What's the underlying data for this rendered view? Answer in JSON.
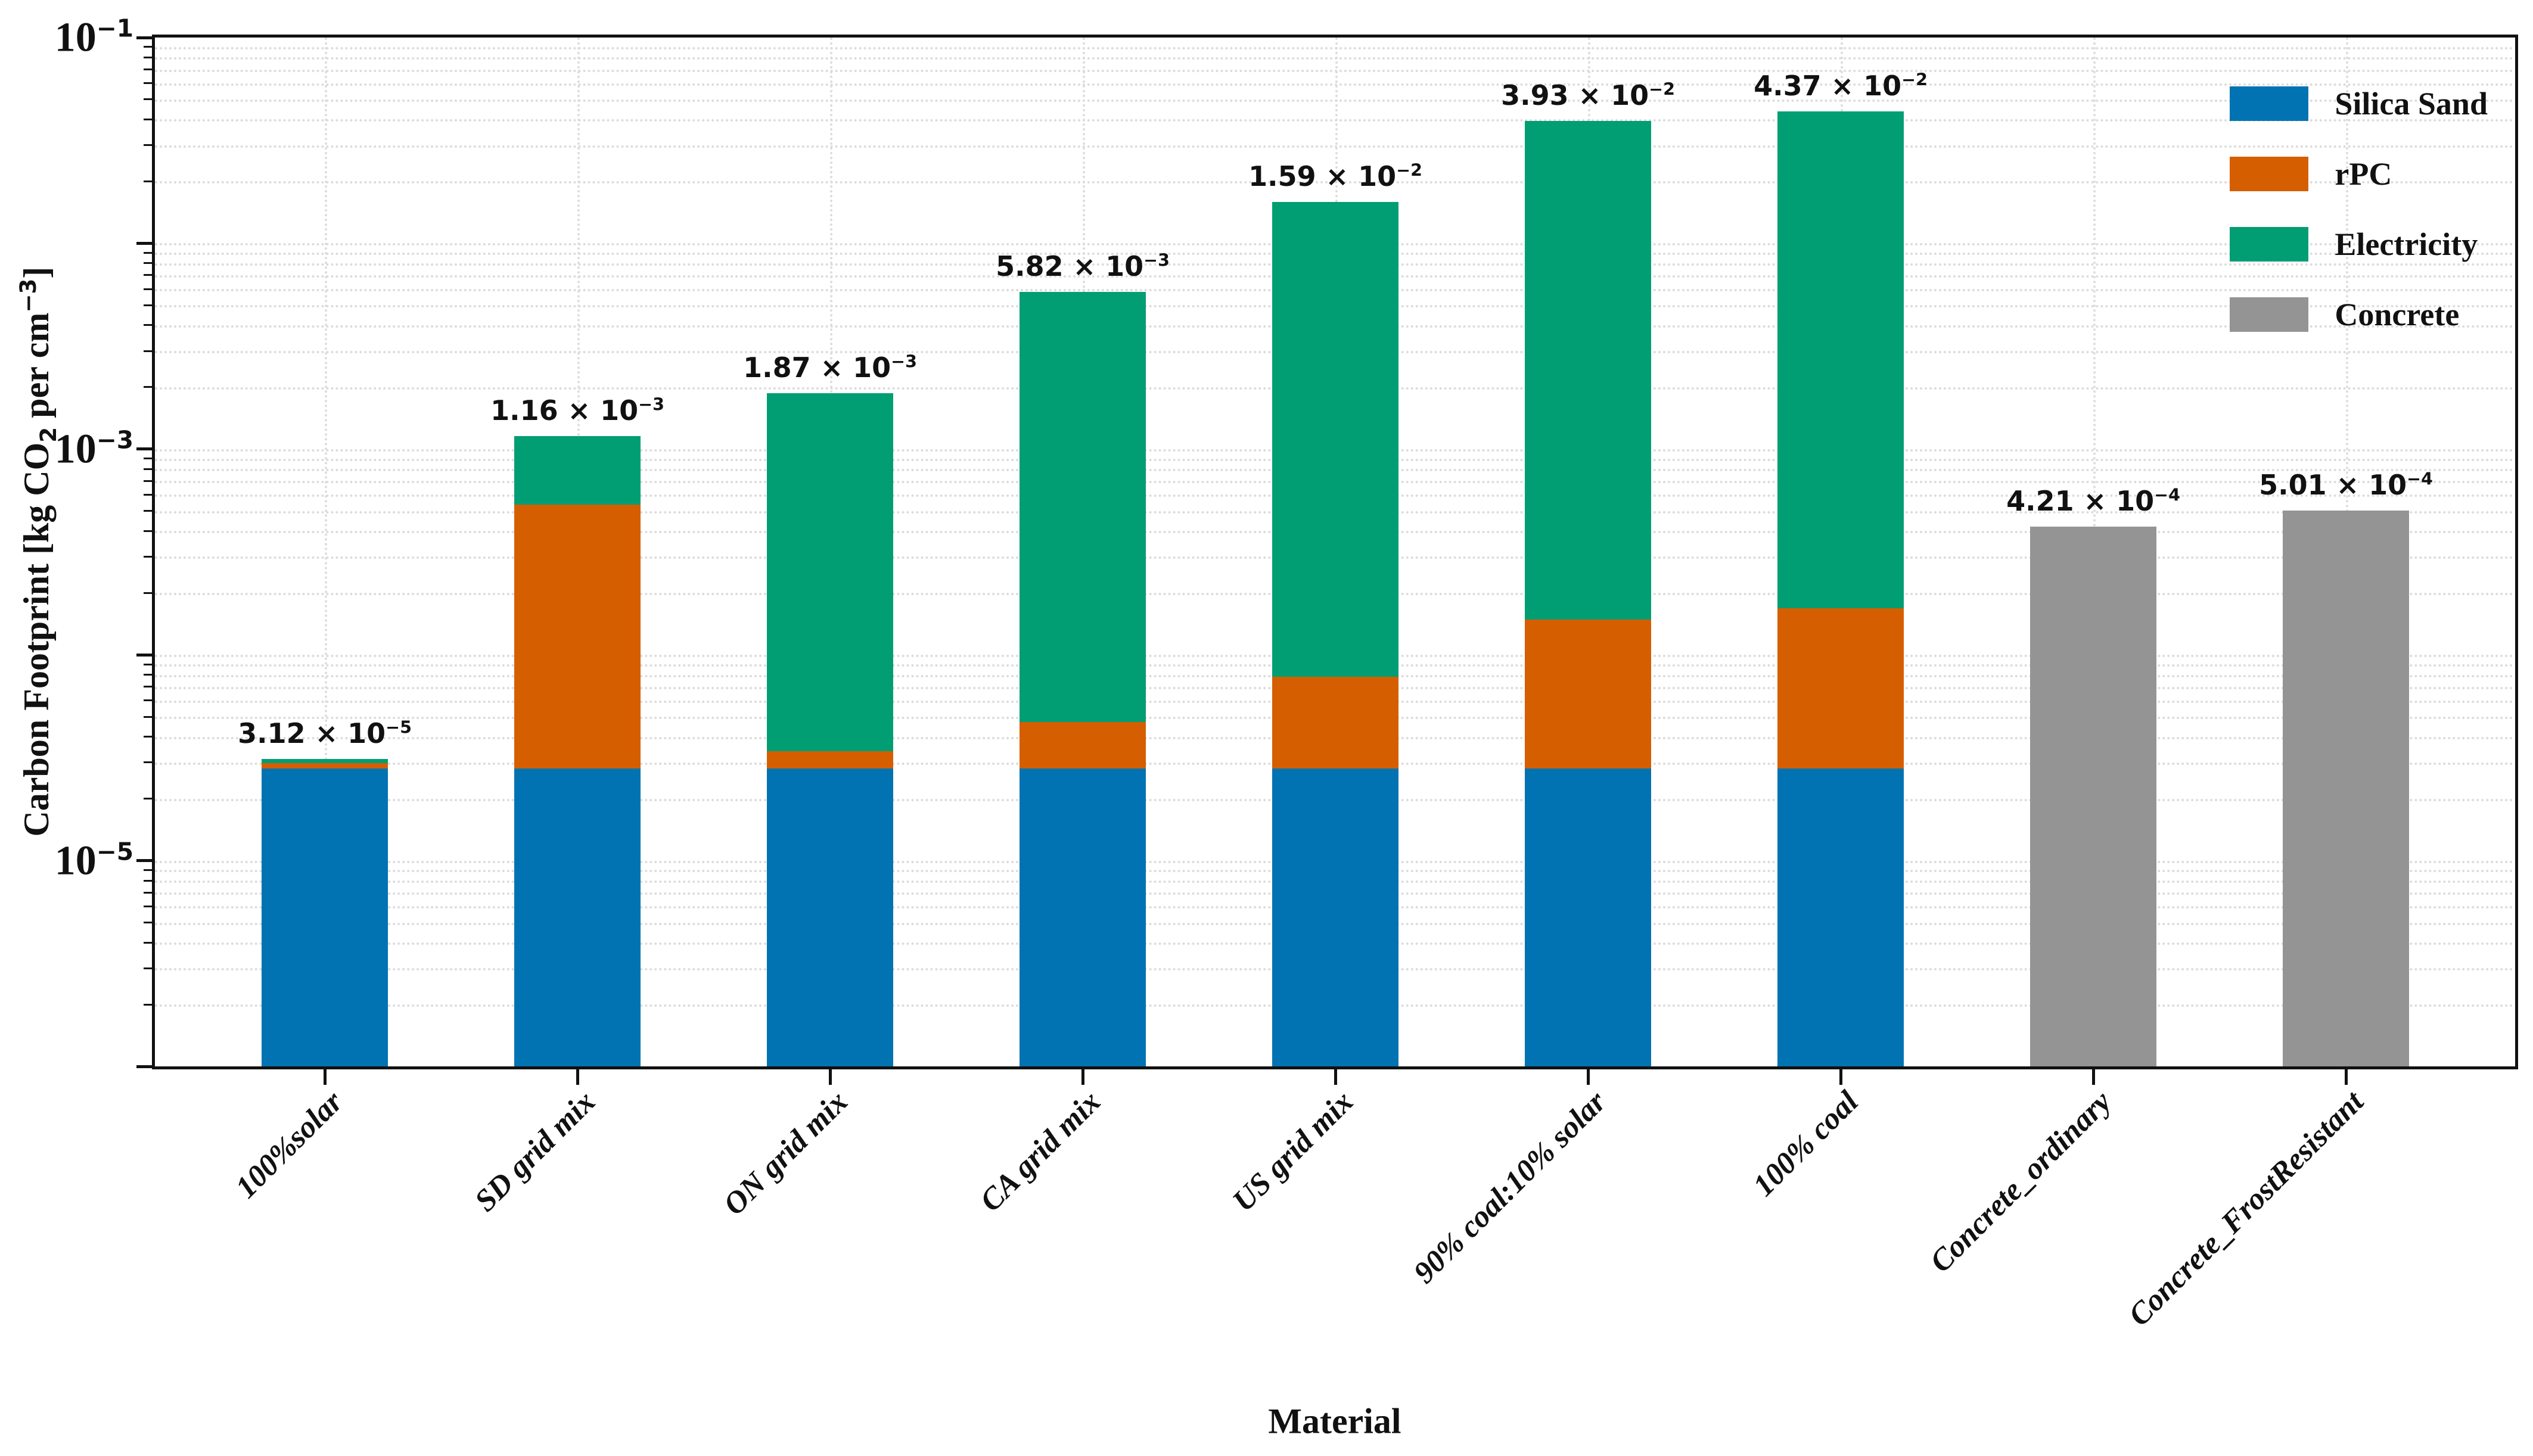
{
  "figure": {
    "x_axis_title": "Material",
    "y_axis_title_plain": "Carbon Footprint [kg CO2 per cm-3]",
    "y_axis_title_segments": [
      {
        "text": "Carbon Footprint [kg CO"
      },
      {
        "text": "2",
        "script": "sub"
      },
      {
        "text": " per cm"
      },
      {
        "text": "−3",
        "script": "sup"
      },
      {
        "text": "]"
      }
    ]
  },
  "legend": {
    "position": "upper right",
    "entries": [
      {
        "label": "Silica Sand",
        "color": "#0173b2"
      },
      {
        "label": "rPC",
        "color": "#d55e00"
      },
      {
        "label": "Electricity",
        "color": "#029e73"
      },
      {
        "label": "Concrete",
        "color": "#949494"
      }
    ]
  },
  "chart_data": {
    "type": "bar",
    "stacked": true,
    "log_y": true,
    "xlabel": "Material",
    "ylabel": "Carbon Footprint [kg CO2 per cm-3]",
    "ylim": [
      1e-06,
      0.1
    ],
    "y_tick_labels": [
      {
        "base": "10",
        "exp": "−1",
        "value": 0.1
      },
      {
        "base": "10",
        "exp": "−3",
        "value": 0.001
      },
      {
        "base": "10",
        "exp": "−5",
        "value": 1e-05
      }
    ],
    "grid": "dotted minor+major log gridlines horizontal, dotted vertical at category centers",
    "legend_position": "upper right",
    "categories": [
      "100%solar",
      "SD grid mix",
      "ON grid mix",
      "CA grid mix",
      "US grid mix",
      "90% coal:10% solar",
      "100% coal",
      "Concrete_ordinary",
      "Concrete_FrostResistant"
    ],
    "series": [
      {
        "name": "Silica Sand",
        "color": "#0173b2",
        "values": [
          2.8e-05,
          2.8e-05,
          2.8e-05,
          2.8e-05,
          2.8e-05,
          2.8e-05,
          2.8e-05,
          0,
          0
        ]
      },
      {
        "name": "rPC",
        "color": "#d55e00",
        "values": [
          1.8e-06,
          0.00051,
          6e-06,
          1.9e-05,
          5e-05,
          0.00012,
          0.00014,
          0,
          0
        ]
      },
      {
        "name": "Electricity",
        "color": "#029e73",
        "values": [
          1.4e-06,
          0.000622,
          0.001836,
          0.005773,
          0.015822,
          0.039152,
          0.043532,
          0,
          0
        ]
      },
      {
        "name": "Concrete",
        "color": "#949494",
        "values": [
          0,
          0,
          0,
          0,
          0,
          0,
          0,
          0.000421,
          0.000501
        ]
      }
    ],
    "totals": [
      3.12e-05,
      0.00116,
      0.00187,
      0.00582,
      0.0159,
      0.0393,
      0.0437,
      0.000421,
      0.000501
    ],
    "total_labels": [
      {
        "mantissa": "3.12",
        "exp": "−5"
      },
      {
        "mantissa": "1.16",
        "exp": "−3"
      },
      {
        "mantissa": "1.87",
        "exp": "−3"
      },
      {
        "mantissa": "5.82",
        "exp": "−3"
      },
      {
        "mantissa": "1.59",
        "exp": "−2"
      },
      {
        "mantissa": "3.93",
        "exp": "−2"
      },
      {
        "mantissa": "4.37",
        "exp": "−2"
      },
      {
        "mantissa": "4.21",
        "exp": "−4"
      },
      {
        "mantissa": "5.01",
        "exp": "−4"
      }
    ]
  },
  "colors": {
    "axis": "#111111",
    "grid": "#dcdcdc",
    "background": "#ffffff"
  }
}
